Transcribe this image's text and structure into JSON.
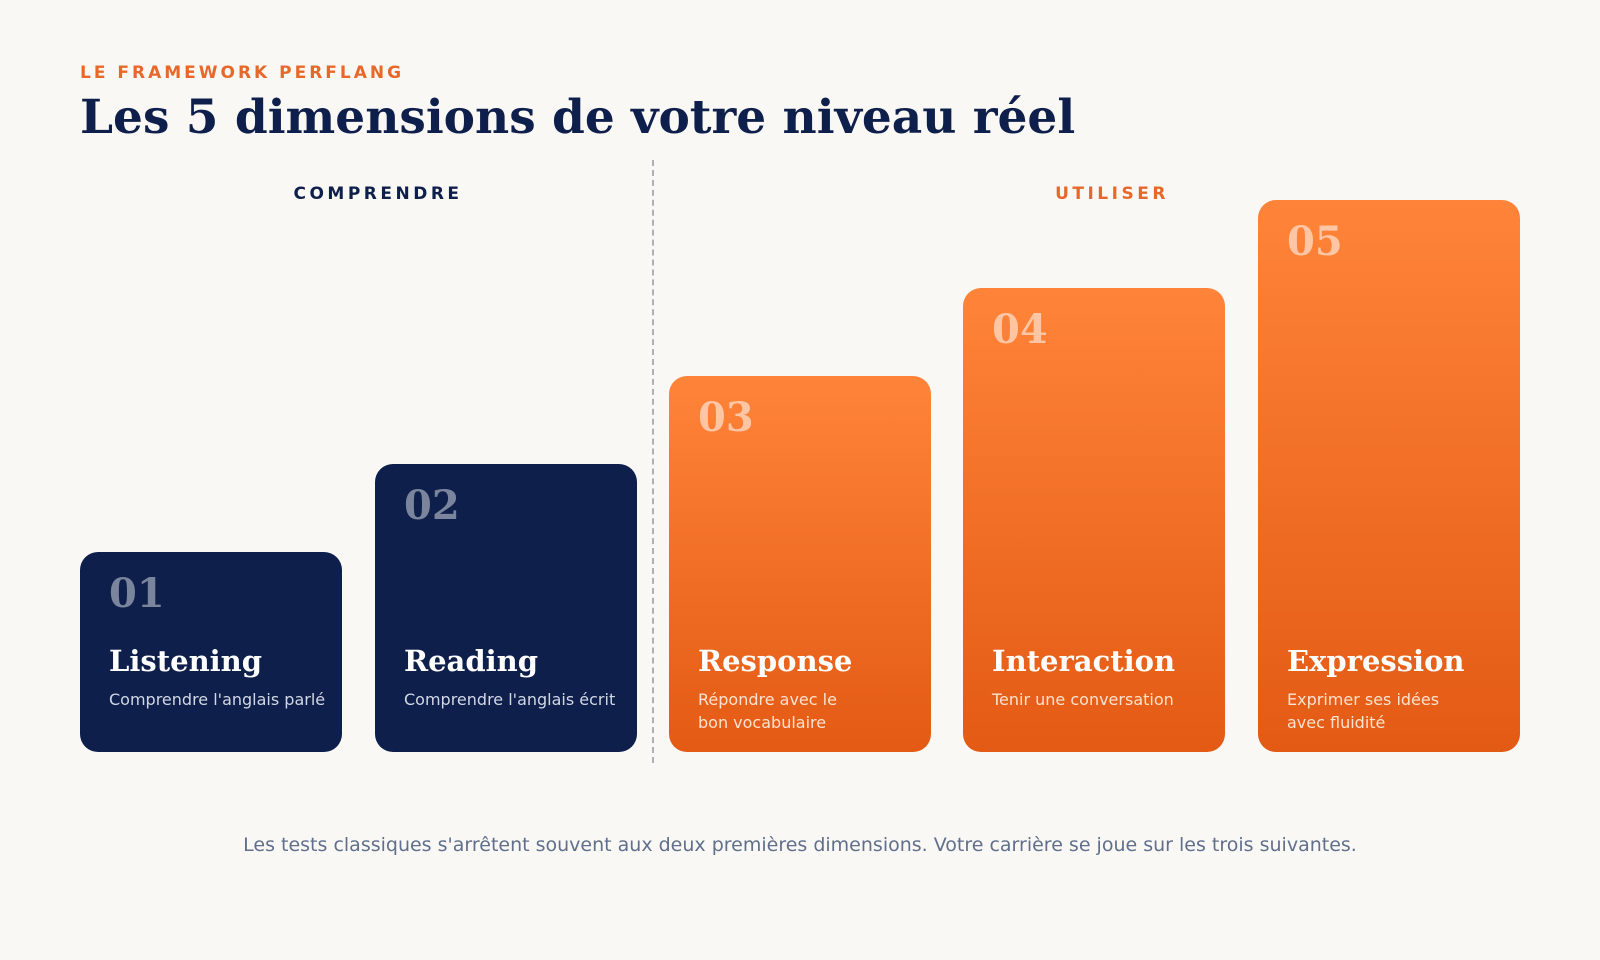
{
  "header": {
    "eyebrow": "LE FRAMEWORK PERFLANG",
    "title": "Les 5 dimensions de votre niveau réel"
  },
  "groups": [
    {
      "label": "COMPRENDRE",
      "color": "#0e1f4b"
    },
    {
      "label": "UTILISER",
      "color": "#e8682a"
    }
  ],
  "dimensions": [
    {
      "number": "01",
      "name": "Listening",
      "description": "Comprendre l'anglais parlé",
      "group": "COMPRENDRE",
      "level": 1
    },
    {
      "number": "02",
      "name": "Reading",
      "description": "Comprendre l'anglais écrit",
      "group": "COMPRENDRE",
      "level": 2
    },
    {
      "number": "03",
      "name": "Response",
      "description": "Répondre avec le bon vocabulaire",
      "group": "UTILISER",
      "level": 3
    },
    {
      "number": "04",
      "name": "Interaction",
      "description": "Tenir une conversation",
      "group": "UTILISER",
      "level": 4
    },
    {
      "number": "05",
      "name": "Expression",
      "description": "Exprimer ses idées avec fluidité",
      "group": "UTILISER",
      "level": 5
    }
  ],
  "colors": {
    "navy": "#0e1f4b",
    "orange_top": "#ff8439",
    "orange_bottom": "#e35a14",
    "background": "#faf8f5"
  },
  "footnote": "Les tests classiques s'arrêtent souvent aux deux premières dimensions. Votre carrière se joue sur les trois suivantes."
}
